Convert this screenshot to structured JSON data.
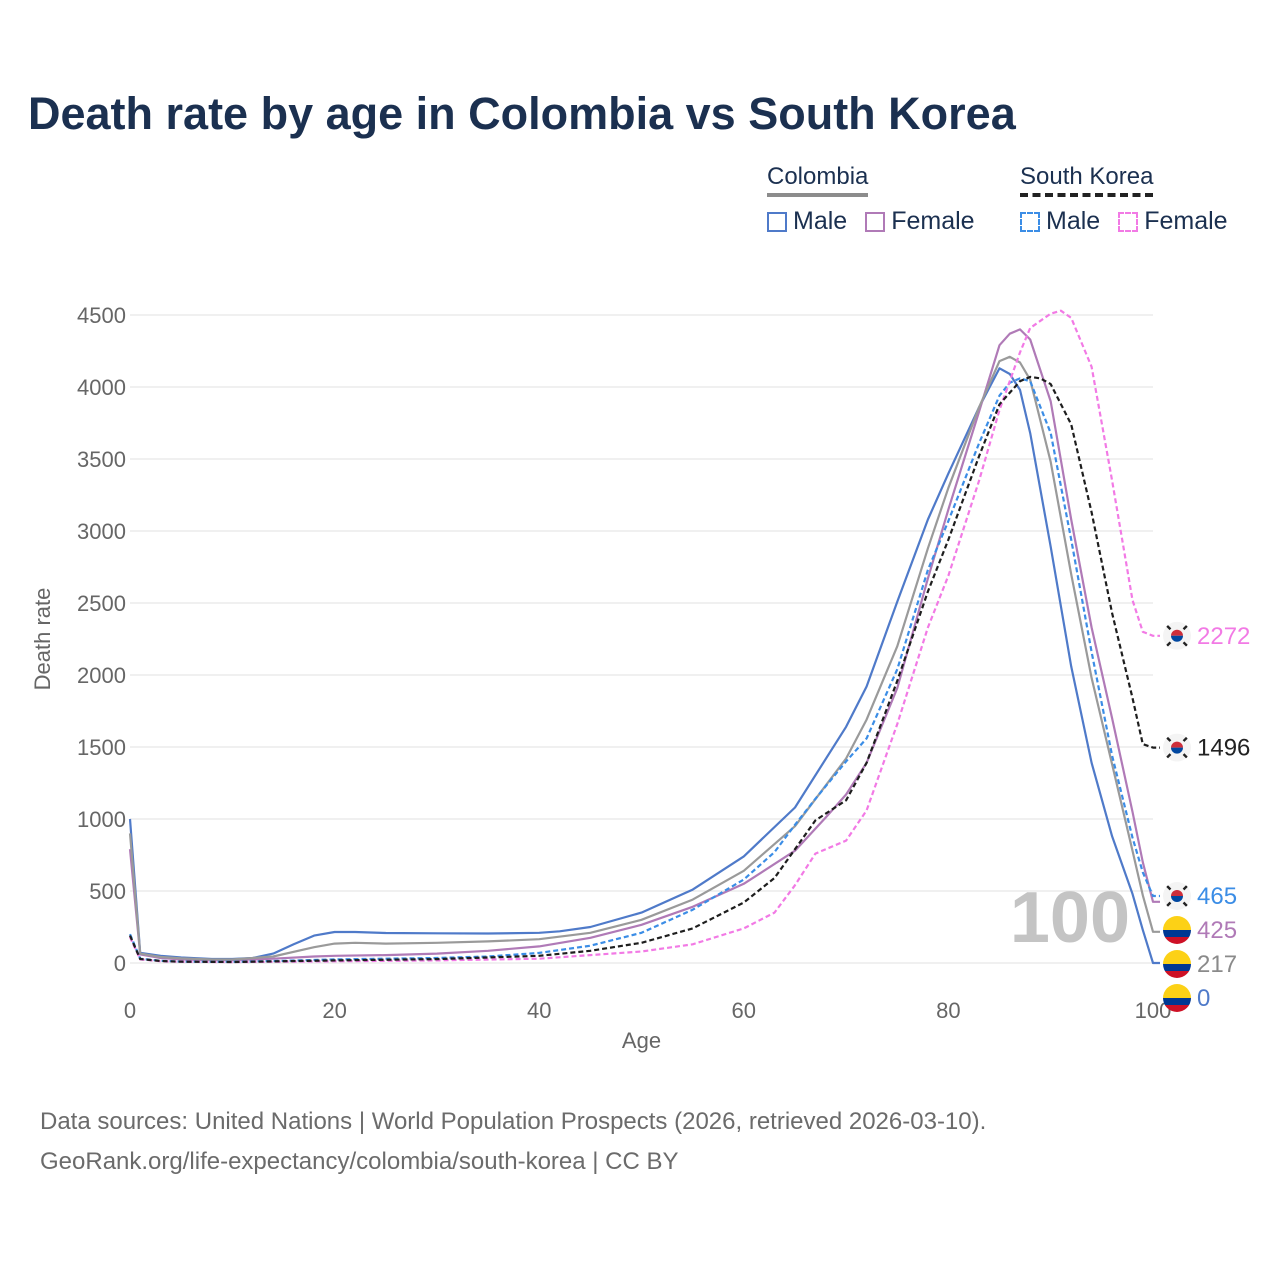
{
  "title": "Death rate by age in Colombia vs South Korea",
  "legend": {
    "groups": [
      {
        "name": "Colombia",
        "style": "solid",
        "items": [
          {
            "label": "Male",
            "color": "#4f7ac9"
          },
          {
            "label": "Female",
            "color": "#b07ab7"
          }
        ]
      },
      {
        "name": "South Korea",
        "style": "dashed",
        "items": [
          {
            "label": "Male",
            "color": "#3b8de6"
          },
          {
            "label": "Female",
            "color": "#f27ae5"
          }
        ]
      }
    ]
  },
  "chart_data": {
    "type": "line",
    "xlabel": "Age",
    "ylabel": "Death rate",
    "xlim": [
      0,
      100
    ],
    "ylim": [
      0,
      4500
    ],
    "xticks": [
      0,
      20,
      40,
      60,
      80,
      100
    ],
    "yticks": [
      0,
      500,
      1000,
      1500,
      2000,
      2500,
      3000,
      3500,
      4000,
      4500
    ],
    "watermark": "100",
    "series": [
      {
        "name": "Colombia Male",
        "country": "Colombia",
        "dash": false,
        "color": "#4f7ac9",
        "flag": "colombia",
        "end_label": "0",
        "x": [
          0,
          1,
          3,
          5,
          8,
          10,
          12,
          14,
          16,
          18,
          20,
          22,
          25,
          30,
          35,
          40,
          42,
          45,
          50,
          55,
          60,
          65,
          70,
          72,
          75,
          78,
          80,
          83,
          85,
          86,
          87,
          88,
          90,
          92,
          94,
          96,
          98,
          99,
          100
        ],
        "y": [
          1000,
          70,
          50,
          38,
          28,
          28,
          35,
          65,
          130,
          190,
          215,
          215,
          208,
          206,
          205,
          210,
          220,
          250,
          350,
          510,
          740,
          1080,
          1640,
          1920,
          2510,
          3080,
          3400,
          3860,
          4130,
          4090,
          3980,
          3680,
          2890,
          2060,
          1390,
          880,
          480,
          230,
          0
        ]
      },
      {
        "name": "Colombia Female",
        "country": "Colombia",
        "dash": false,
        "color": "#b07ab7",
        "flag": "colombia",
        "end_label": "425",
        "x": [
          0,
          1,
          3,
          5,
          8,
          10,
          14,
          18,
          20,
          25,
          30,
          35,
          40,
          45,
          50,
          55,
          60,
          65,
          68,
          70,
          72,
          75,
          78,
          80,
          83,
          85,
          86,
          87,
          88,
          90,
          92,
          94,
          96,
          98,
          99,
          100
        ],
        "y": [
          790,
          60,
          35,
          25,
          20,
          20,
          30,
          45,
          50,
          55,
          65,
          85,
          115,
          175,
          265,
          390,
          550,
          780,
          1010,
          1170,
          1390,
          1910,
          2670,
          3150,
          3830,
          4290,
          4370,
          4400,
          4330,
          3900,
          3080,
          2330,
          1700,
          1050,
          700,
          425
        ]
      },
      {
        "name": "Colombia Both",
        "country": "Colombia",
        "dash": false,
        "color": "#9a9a9a",
        "flag": "colombia",
        "end_label": "217",
        "x": [
          0,
          1,
          3,
          5,
          8,
          10,
          14,
          18,
          20,
          22,
          25,
          30,
          35,
          40,
          45,
          50,
          55,
          60,
          65,
          70,
          72,
          75,
          78,
          80,
          83,
          85,
          86,
          87,
          88,
          90,
          92,
          94,
          96,
          98,
          99,
          100
        ],
        "y": [
          900,
          65,
          42,
          32,
          24,
          24,
          45,
          110,
          135,
          140,
          135,
          140,
          150,
          165,
          210,
          300,
          440,
          640,
          950,
          1420,
          1690,
          2200,
          2880,
          3300,
          3860,
          4180,
          4210,
          4170,
          4050,
          3480,
          2700,
          1980,
          1380,
          780,
          470,
          217
        ]
      },
      {
        "name": "South Korea Male",
        "country": "South Korea",
        "dash": true,
        "color": "#3b8de6",
        "flag": "korea",
        "end_label": "465",
        "x": [
          0,
          1,
          3,
          5,
          10,
          15,
          20,
          25,
          30,
          35,
          40,
          45,
          50,
          55,
          60,
          63,
          65,
          67,
          70,
          72,
          75,
          78,
          80,
          83,
          85,
          86,
          87,
          88,
          90,
          92,
          94,
          96,
          98,
          99,
          100
        ],
        "y": [
          200,
          30,
          15,
          10,
          8,
          15,
          25,
          30,
          35,
          45,
          70,
          120,
          210,
          370,
          580,
          770,
          960,
          1140,
          1400,
          1560,
          2040,
          2730,
          3070,
          3610,
          3940,
          4030,
          4060,
          4040,
          3680,
          2940,
          2160,
          1440,
          870,
          630,
          465
        ]
      },
      {
        "name": "South Korea Female",
        "country": "South Korea",
        "dash": true,
        "color": "#f27ae5",
        "flag": "korea",
        "end_label": "2272",
        "x": [
          0,
          1,
          3,
          5,
          10,
          20,
          30,
          40,
          45,
          50,
          55,
          60,
          63,
          65,
          67,
          70,
          72,
          75,
          78,
          80,
          83,
          85,
          87,
          88,
          90,
          91,
          92,
          94,
          96,
          98,
          99,
          100
        ],
        "y": [
          180,
          25,
          12,
          8,
          6,
          12,
          18,
          30,
          55,
          80,
          130,
          240,
          350,
          540,
          760,
          850,
          1060,
          1660,
          2330,
          2690,
          3350,
          3840,
          4240,
          4410,
          4510,
          4530,
          4480,
          4140,
          3350,
          2520,
          2300,
          2272
        ]
      },
      {
        "name": "South Korea Both",
        "country": "South Korea",
        "dash": true,
        "color": "#1e1e1e",
        "flag": "korea",
        "end_label": "1496",
        "x": [
          0,
          1,
          3,
          5,
          10,
          20,
          30,
          40,
          45,
          50,
          55,
          60,
          63,
          65,
          67,
          70,
          72,
          75,
          78,
          80,
          83,
          85,
          87,
          88,
          89,
          90,
          92,
          94,
          96,
          98,
          99,
          100
        ],
        "y": [
          190,
          28,
          14,
          9,
          7,
          18,
          27,
          50,
          85,
          140,
          240,
          420,
          590,
          790,
          990,
          1130,
          1390,
          1960,
          2580,
          2940,
          3520,
          3880,
          4040,
          4070,
          4060,
          4020,
          3740,
          3130,
          2430,
          1840,
          1520,
          1496
        ]
      }
    ]
  },
  "footer": {
    "line1": "Data sources: United Nations | World Population Prospects (2026, retrieved 2026-03-10).",
    "line2": "GeoRank.org/life-expectancy/colombia/south-korea | CC BY"
  }
}
